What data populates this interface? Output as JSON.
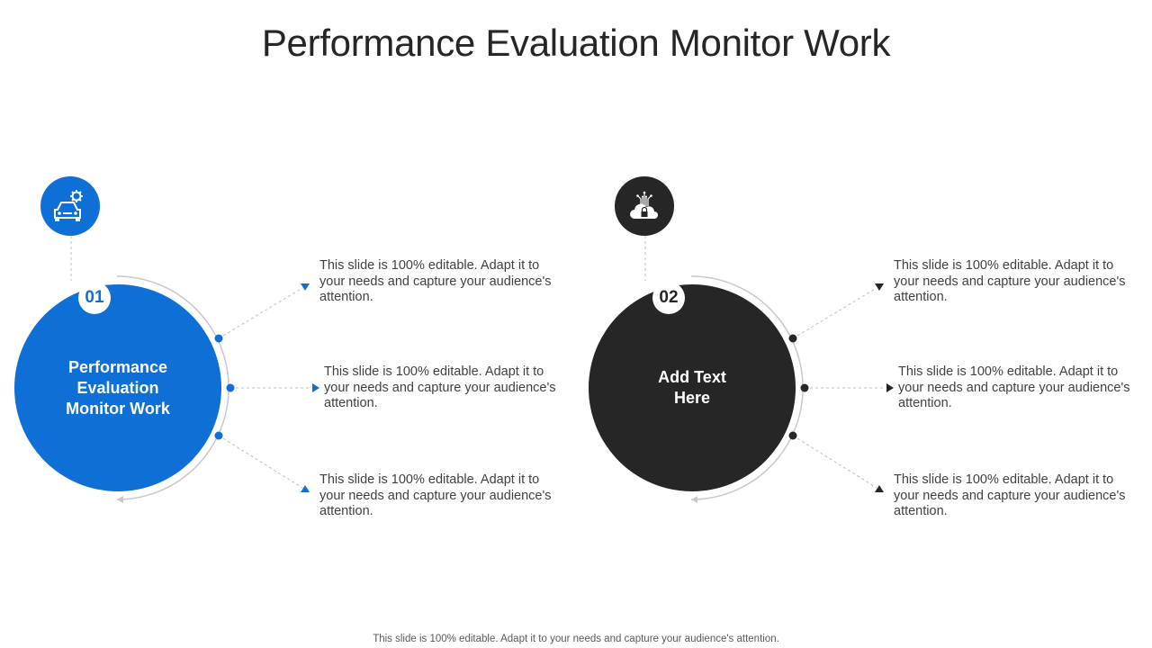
{
  "slide": {
    "title": "Performance Evaluation Monitor Work",
    "footer": "This slide is 100% editable. Adapt it to your needs and capture your audience's attention."
  },
  "colors": {
    "blue": "#0e6fd6",
    "dark": "#262626",
    "connector": "#bfbfbf"
  },
  "items": [
    {
      "number": "01",
      "label": "Performance Evaluation Monitor Work",
      "icon": "car-gear-icon",
      "points": [
        "This slide is 100% editable. Adapt it to your needs and capture your audience's attention.",
        "This slide is 100% editable. Adapt it to your needs and capture your audience's attention.",
        "This slide is 100% editable. Adapt it to your needs and capture your audience's attention."
      ]
    },
    {
      "number": "02",
      "label": "Add Text Here",
      "icon": "cloud-lock-icon",
      "points": [
        "This slide is 100% editable. Adapt it to your needs and capture your audience's attention.",
        "This slide is 100% editable. Adapt it to your needs and capture your audience's attention.",
        "This slide is 100% editable. Adapt it to your needs and capture your audience's attention."
      ]
    }
  ]
}
